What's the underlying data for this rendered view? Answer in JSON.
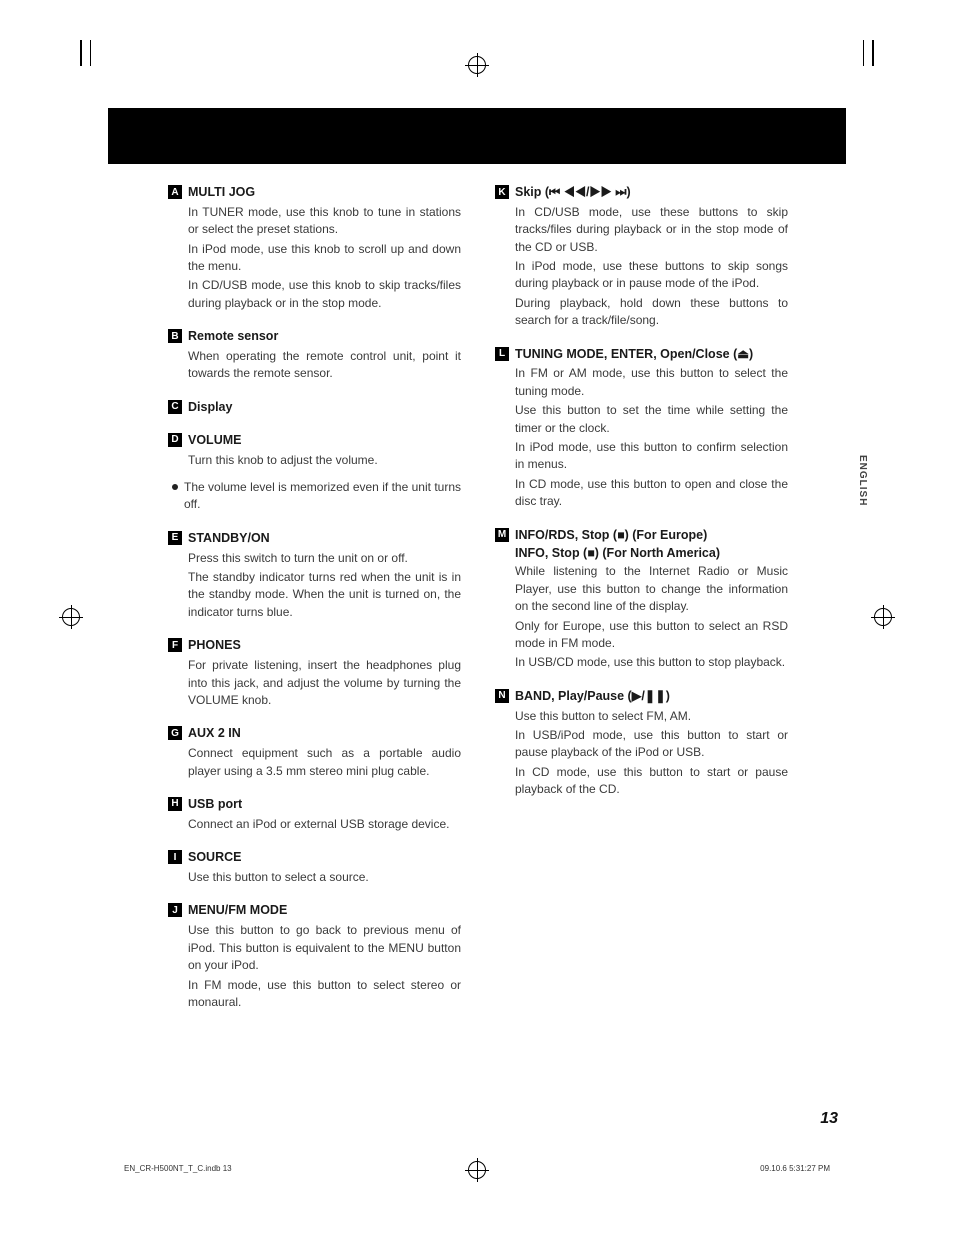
{
  "page_number": "13",
  "language_tab": "ENGLISH",
  "footer_left": "EN_CR-H500NT_T_C.indb   13",
  "footer_right": "09.10.6   5:31:27 PM",
  "left_column": [
    {
      "letter": "A",
      "title": "MULTI JOG",
      "paras": [
        "In TUNER mode, use this knob to tune in stations or select the preset stations.",
        "In iPod mode, use this knob to scroll up and down the menu.",
        "In CD/USB mode, use this knob to skip tracks/files during playback or in the stop mode."
      ]
    },
    {
      "letter": "B",
      "title": "Remote sensor",
      "paras": [
        "When operating the remote control unit, point it towards the remote sensor."
      ]
    },
    {
      "letter": "C",
      "title": "Display",
      "paras": []
    },
    {
      "letter": "D",
      "title": "VOLUME",
      "paras": [
        "Turn this knob to adjust the volume."
      ],
      "bullet": "The volume level is memorized even if the unit turns off."
    },
    {
      "letter": "E",
      "title": "STANDBY/ON",
      "paras": [
        "Press this switch to turn the unit on or off.",
        "The standby indicator turns red when the unit is in the standby mode. When the unit is turned on, the indicator turns blue."
      ]
    },
    {
      "letter": "F",
      "title": "PHONES",
      "paras": [
        "For private listening, insert the headphones plug into this jack, and adjust the volume by turning the VOLUME knob."
      ]
    },
    {
      "letter": "G",
      "title": "AUX 2 IN",
      "paras": [
        "Connect equipment such as a portable audio player using a 3.5 mm stereo mini plug cable."
      ]
    },
    {
      "letter": "H",
      "title": "USB port",
      "paras": [
        "Connect an iPod or external USB storage device."
      ]
    },
    {
      "letter": "I",
      "title": "SOURCE",
      "paras": [
        "Use this button to select a source."
      ]
    },
    {
      "letter": "J",
      "title": "MENU/FM MODE",
      "paras": [
        "Use this button to go back to previous menu of iPod. This button is equivalent to the MENU button on your iPod.",
        "In FM mode, use this button to select stereo or monaural."
      ]
    }
  ],
  "right_column": [
    {
      "letter": "K",
      "title": "Skip (⏮ ◀◀/▶▶ ⏭)",
      "paras": [
        "In CD/USB mode, use these buttons to skip tracks/files during playback or in the stop mode of the CD or USB.",
        "In iPod mode, use these buttons to skip songs during playback or in pause mode of the iPod.",
        "During playback, hold down these buttons to search for a track/file/song."
      ]
    },
    {
      "letter": "L",
      "title": "TUNING MODE, ENTER, Open/Close (⏏)",
      "paras": [
        "In FM or AM mode, use this button to select the tuning mode.",
        "Use this button to set the time while setting the timer or the clock.",
        "In iPod mode, use this button to confirm selection in menus.",
        "In CD mode, use this button to open and close the disc tray."
      ]
    },
    {
      "letter": "M",
      "title": "INFO/RDS, Stop (■) (For Europe)",
      "subtitle": "INFO, Stop (■) (For North America)",
      "paras": [
        "While listening to the Internet Radio or Music Player, use this button to change the information on the second line of the display.",
        "Only for Europe, use this button to select an RSD mode in FM mode.",
        "In USB/CD mode, use this button to stop playback."
      ]
    },
    {
      "letter": "N",
      "title": "BAND, Play/Pause (▶/❚❚)",
      "paras": [
        "Use this button to select FM, AM.",
        "In USB/iPod mode, use this button to start or pause playback of the iPod or USB.",
        "In CD mode, use this button to start or pause playback of the CD."
      ]
    }
  ]
}
